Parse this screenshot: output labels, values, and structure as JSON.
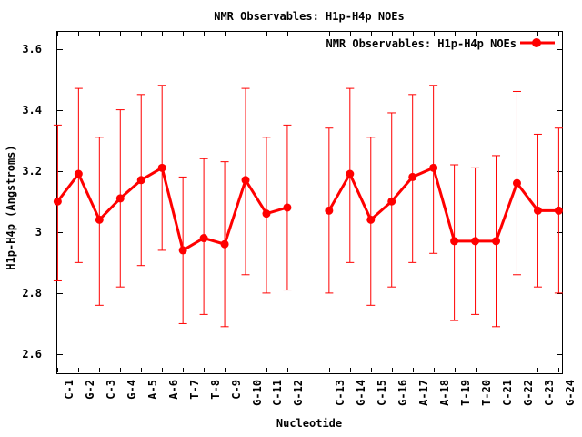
{
  "window": {
    "background": "#ffffff",
    "foreground": "#000000"
  },
  "chart_data": {
    "type": "line",
    "title": "NMR Observables: H1p-H4p NOEs",
    "xlabel": "Nucleotide",
    "ylabel": "H1p-H4p (Angstroms)",
    "legend": {
      "label": "NMR Observables: H1p-H4p NOEs",
      "position": "top-right-inside",
      "marker": "filled-circle-on-line"
    },
    "series_color": "#ff0000",
    "grid": false,
    "error_bars": true,
    "marker": "filled-circle",
    "ylim": [
      2.537,
      3.658
    ],
    "ytick_labels": [
      "2.6",
      "2.8",
      "3",
      "3.2",
      "3.4",
      "3.6"
    ],
    "ytick_values": [
      2.6,
      2.8,
      3.0,
      3.2,
      3.4,
      3.6
    ],
    "break_after": "G-12",
    "points": [
      {
        "label": "C-1",
        "y": 3.1,
        "ylow": 2.84,
        "yhigh": 3.35
      },
      {
        "label": "G-2",
        "y": 3.19,
        "ylow": 2.9,
        "yhigh": 3.47
      },
      {
        "label": "C-3",
        "y": 3.04,
        "ylow": 2.76,
        "yhigh": 3.31
      },
      {
        "label": "G-4",
        "y": 3.11,
        "ylow": 2.82,
        "yhigh": 3.4
      },
      {
        "label": "A-5",
        "y": 3.17,
        "ylow": 2.89,
        "yhigh": 3.45
      },
      {
        "label": "A-6",
        "y": 3.21,
        "ylow": 2.94,
        "yhigh": 3.48
      },
      {
        "label": "T-7",
        "y": 2.94,
        "ylow": 2.7,
        "yhigh": 3.18
      },
      {
        "label": "T-8",
        "y": 2.98,
        "ylow": 2.73,
        "yhigh": 3.24
      },
      {
        "label": "C-9",
        "y": 2.96,
        "ylow": 2.69,
        "yhigh": 3.23
      },
      {
        "label": "G-10",
        "y": 3.17,
        "ylow": 2.86,
        "yhigh": 3.47
      },
      {
        "label": "C-11",
        "y": 3.06,
        "ylow": 2.8,
        "yhigh": 3.31
      },
      {
        "label": "G-12",
        "y": 3.08,
        "ylow": 2.81,
        "yhigh": 3.35
      },
      {
        "label": "C-13",
        "y": 3.07,
        "ylow": 2.8,
        "yhigh": 3.34
      },
      {
        "label": "G-14",
        "y": 3.19,
        "ylow": 2.9,
        "yhigh": 3.47
      },
      {
        "label": "C-15",
        "y": 3.04,
        "ylow": 2.76,
        "yhigh": 3.31
      },
      {
        "label": "G-16",
        "y": 3.1,
        "ylow": 2.82,
        "yhigh": 3.39
      },
      {
        "label": "A-17",
        "y": 3.18,
        "ylow": 2.9,
        "yhigh": 3.45
      },
      {
        "label": "A-18",
        "y": 3.21,
        "ylow": 2.93,
        "yhigh": 3.48
      },
      {
        "label": "T-19",
        "y": 2.97,
        "ylow": 2.71,
        "yhigh": 3.22
      },
      {
        "label": "T-20",
        "y": 2.97,
        "ylow": 2.73,
        "yhigh": 3.21
      },
      {
        "label": "C-21",
        "y": 2.97,
        "ylow": 2.69,
        "yhigh": 3.25
      },
      {
        "label": "G-22",
        "y": 3.16,
        "ylow": 2.86,
        "yhigh": 3.46
      },
      {
        "label": "C-23",
        "y": 3.07,
        "ylow": 2.82,
        "yhigh": 3.32
      },
      {
        "label": "G-24",
        "y": 3.07,
        "ylow": 2.8,
        "yhigh": 3.34
      }
    ]
  }
}
